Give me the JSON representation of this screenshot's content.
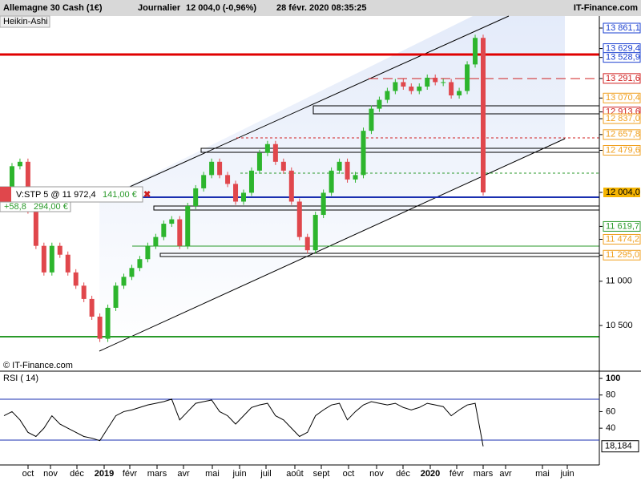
{
  "header": {
    "instrument": "Allemagne 30 Cash (1€)",
    "period": "Journalier",
    "last": "12 004,0 (-0,96%)",
    "timestamp": "28 févr. 2020 08:35:25",
    "brand": "IT-Finance.com"
  },
  "chart_data": {
    "type": "candlestick",
    "style": "Heikin-Ashi",
    "copyright": "© IT-Finance.com",
    "values": [
      12000,
      12300,
      12350,
      11800,
      11400,
      11100,
      11400,
      11300,
      11100,
      10950,
      10800,
      10600,
      10350,
      10700,
      10950,
      11050,
      11150,
      11250,
      11400,
      11500,
      11650,
      11700,
      11400,
      11850,
      12050,
      12200,
      12350,
      12200,
      12100,
      11900,
      12000,
      12250,
      12450,
      12550,
      12350,
      12250,
      11900,
      11500,
      11350,
      11750,
      12000,
      12250,
      12350,
      12150,
      12200,
      12700,
      12950,
      13050,
      13150,
      13250,
      13200,
      13150,
      13200,
      13300,
      13250,
      13250,
      13100,
      13150,
      13450,
      13750,
      12004
    ],
    "up_color": "#2db52d",
    "down_color": "#e0474c",
    "ylim": [
      9993,
      13997
    ],
    "yticks": [
      {
        "value": 13861.1,
        "label": "13 861,1",
        "color": "#1a3fd0"
      },
      {
        "value": 13629.4,
        "label": "13 629,4",
        "color": "#1a3fd0"
      },
      {
        "value": 13528.9,
        "label": "13 528,9",
        "color": "#1a3fd0"
      },
      {
        "value": 13291.6,
        "label": "13 291,6",
        "color": "#d02020"
      },
      {
        "value": 13070.4,
        "label": "13 070,4",
        "color": "#f0a020"
      },
      {
        "value": 12913.6,
        "label": "12 913,6",
        "color": "#d02020"
      },
      {
        "value": 12837.0,
        "label": "12 837,0",
        "color": "#f0a020"
      },
      {
        "value": 12657.8,
        "label": "12 657,8",
        "color": "#f0a020"
      },
      {
        "value": 12479.6,
        "label": "12 479,6",
        "color": "#f0a020"
      },
      {
        "value": 12004.0,
        "label": "12 004,0",
        "color": "#000000"
      },
      {
        "value": 11619.7,
        "label": "11 619,7",
        "color": "#2a9a2a"
      },
      {
        "value": 11474.2,
        "label": "11 474,2",
        "color": "#f0a020"
      },
      {
        "value": 11295.0,
        "label": "11 295,0",
        "color": "#f0a020"
      },
      {
        "value": 11000,
        "label": "11 000",
        "color": "#000000"
      },
      {
        "value": 10500,
        "label": "10 500",
        "color": "#000000"
      }
    ],
    "xticks": [
      "oct",
      "nov",
      "déc",
      "2019",
      "févr",
      "mars",
      "avr",
      "mai",
      "juin",
      "juil",
      "août",
      "sept",
      "oct",
      "nov",
      "déc",
      "2020",
      "févr",
      "mars",
      "avr",
      "mai",
      "juin"
    ]
  },
  "order": {
    "label": "V:STP  5 @ 11 972,4",
    "pnl": "141,00 €",
    "points": "+58,8",
    "amount": "294,00 €"
  },
  "rsi": {
    "title": "RSI ( 14)",
    "values": [
      55,
      60,
      50,
      35,
      30,
      40,
      55,
      45,
      40,
      35,
      30,
      28,
      25,
      40,
      55,
      60,
      62,
      65,
      68,
      70,
      72,
      75,
      50,
      60,
      70,
      72,
      74,
      60,
      55,
      45,
      55,
      65,
      68,
      70,
      55,
      50,
      40,
      30,
      35,
      55,
      62,
      68,
      70,
      50,
      60,
      68,
      72,
      70,
      68,
      70,
      65,
      62,
      65,
      70,
      68,
      66,
      55,
      62,
      68,
      70,
      18.184
    ],
    "ylim": [
      -4.3,
      106.8
    ],
    "yticks": [
      100,
      80,
      60,
      40
    ],
    "last": {
      "value": 18.184,
      "label": "18,184"
    }
  }
}
